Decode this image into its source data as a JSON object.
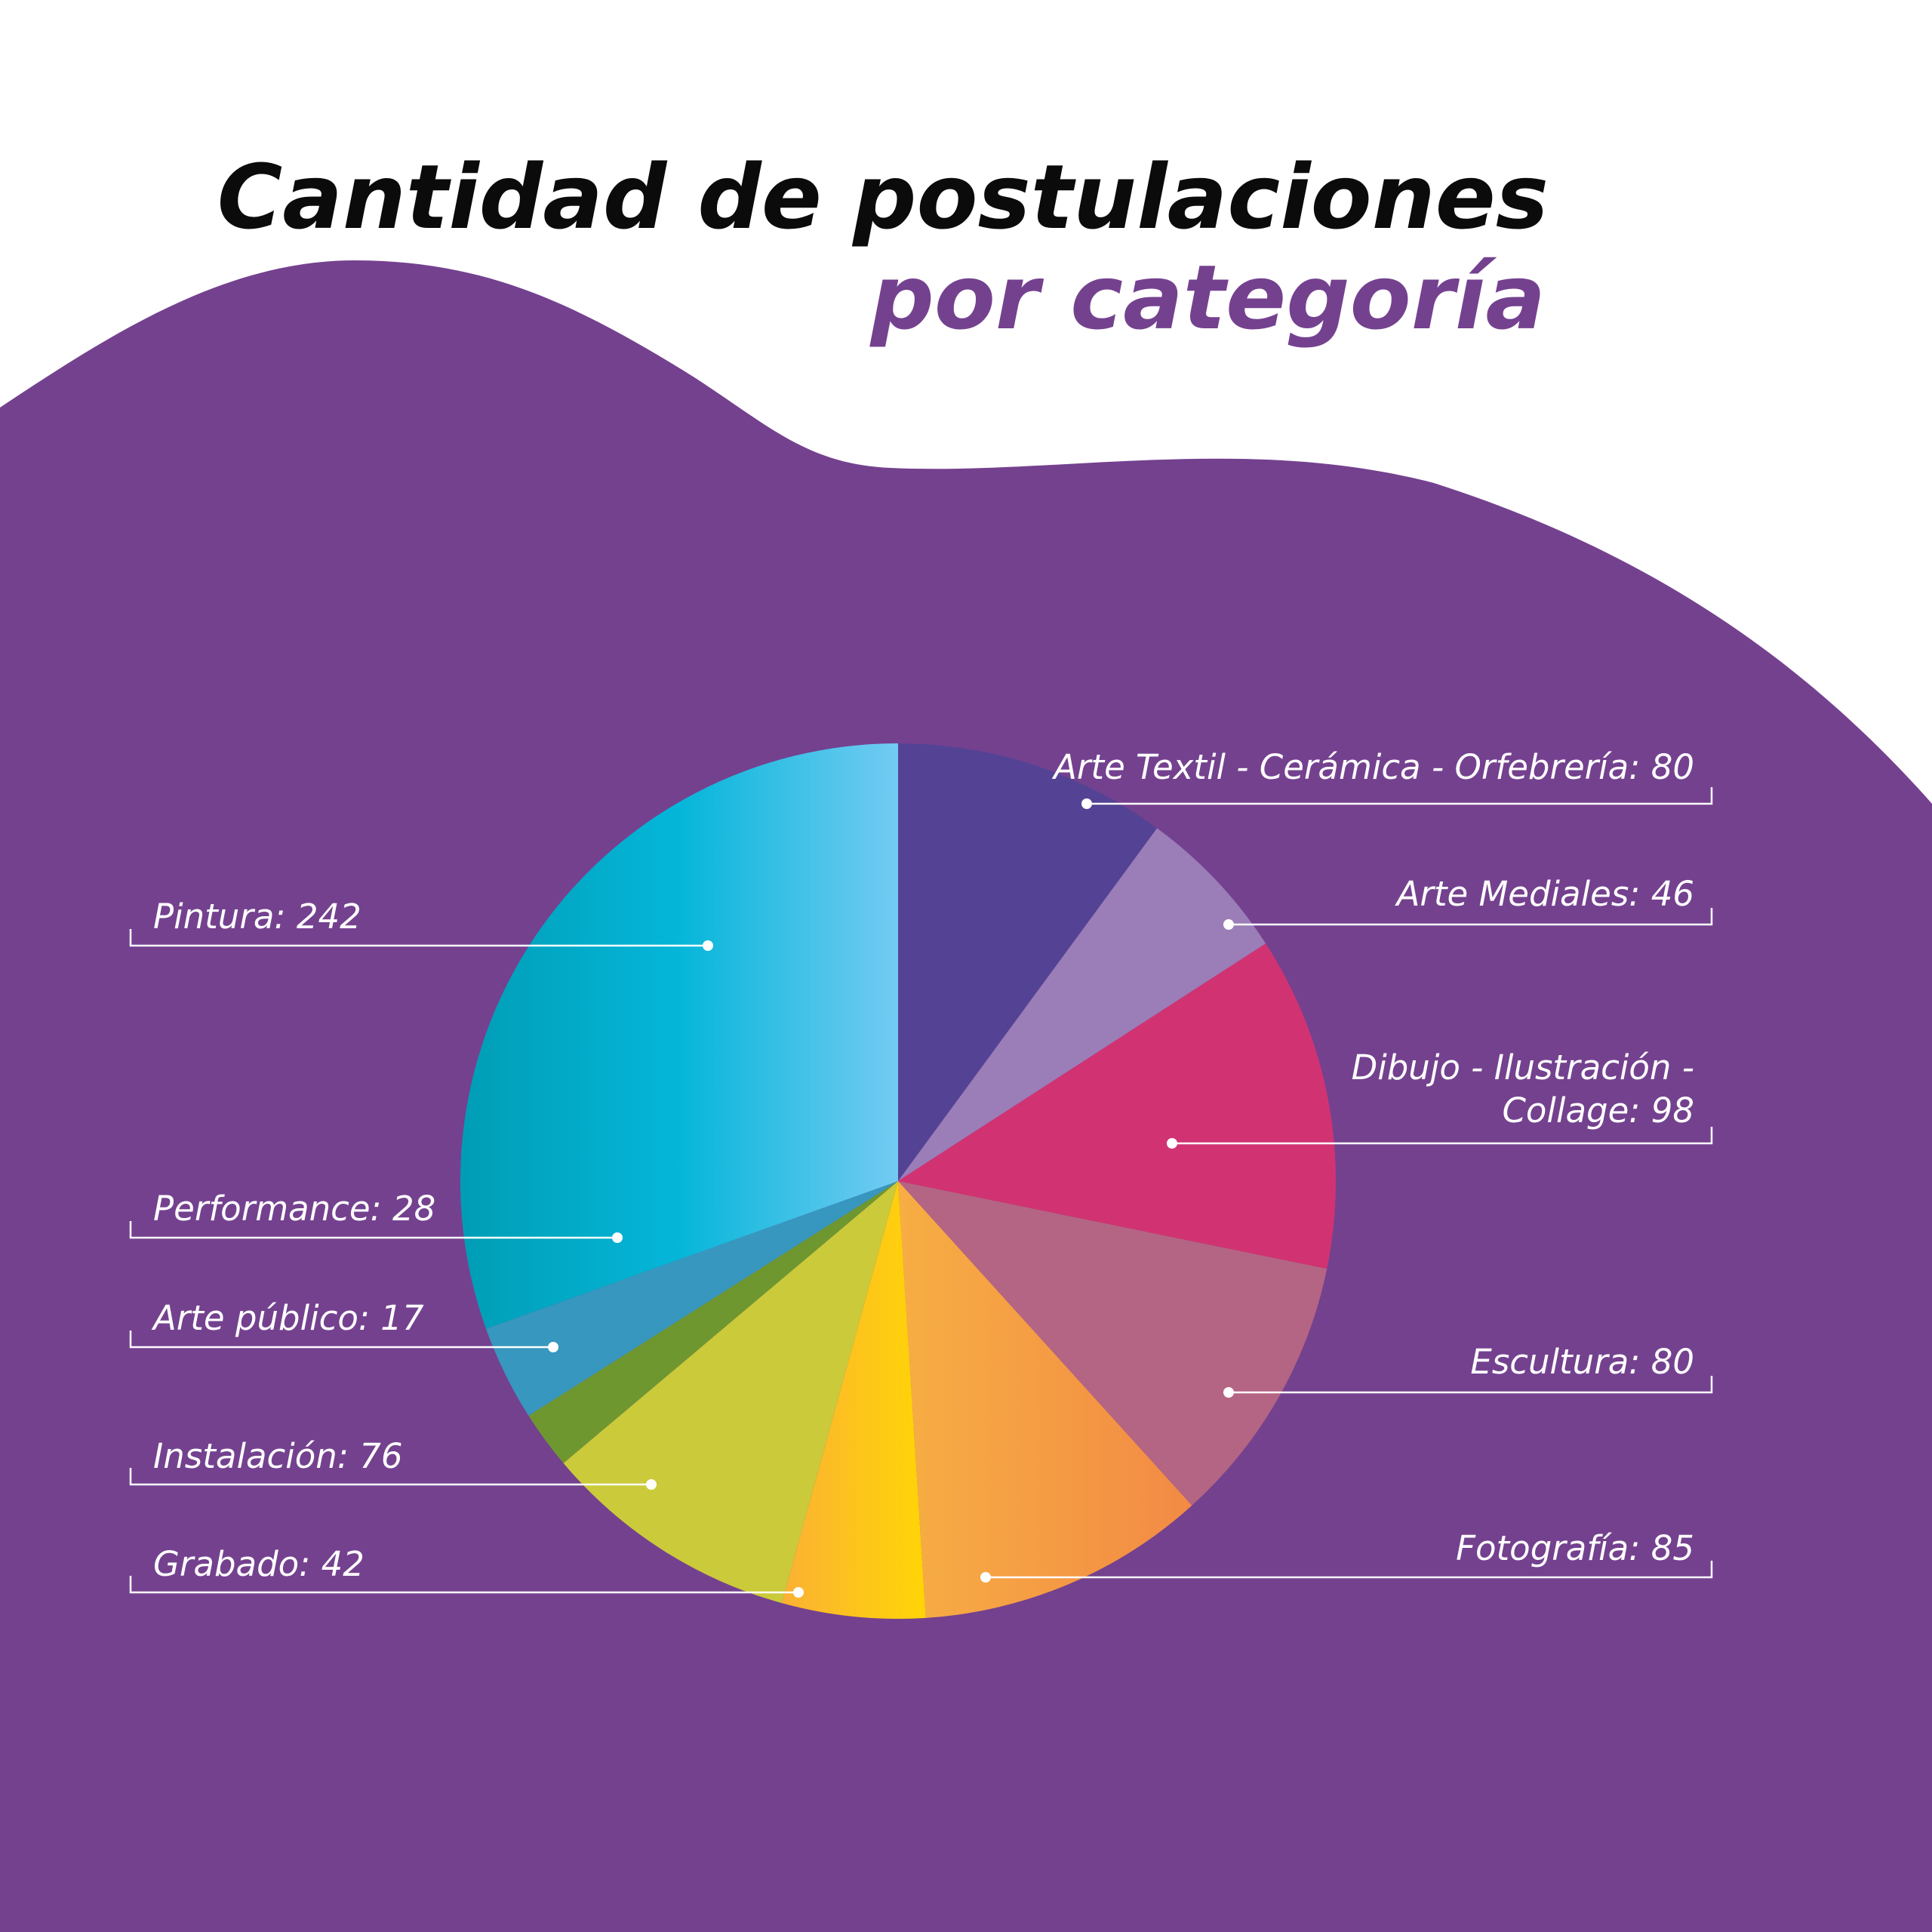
{
  "colors": {
    "background_wave": "#74418f",
    "title_primary": "#0b0b0b",
    "title_accent": "#74418f",
    "label_text": "#ffffff"
  },
  "chart_data": {
    "type": "pie",
    "title": "Cantidad de postulaciones",
    "subtitle": "por categoría",
    "start_angle_deg": 0,
    "direction": "clockwise",
    "slices": [
      {
        "label": "Arte Textil - Cerámica - Orfebrería",
        "display": "Arte Textil - Cerámica - Orfebrería: 80",
        "value": 80,
        "color": "#544394",
        "label_side": "right"
      },
      {
        "label": "Arte Mediales",
        "display": "Arte Mediales: 46",
        "value": 46,
        "color": "#9b7db8",
        "label_side": "right"
      },
      {
        "label": "Dibujo - Ilustración - Collage",
        "display_lines": [
          "Dibujo - Ilustración -",
          "Collage: 98"
        ],
        "value": 98,
        "color": "#d13372",
        "label_side": "right"
      },
      {
        "label": "Escultura",
        "display": "Escultura: 80",
        "value": 80,
        "color": "#b46583",
        "label_side": "right"
      },
      {
        "label": "Fotografía",
        "display": "Fotografía: 85",
        "value": 85,
        "color": "#f5a146",
        "color_end": "#f28b44",
        "label_side": "right"
      },
      {
        "label": "Grabado",
        "display": "Grabado: 42",
        "value": 42,
        "color": "#fbb134",
        "color_end": "#ffd506",
        "label_side": "left"
      },
      {
        "label": "Instalación",
        "display": "Instalación: 76",
        "value": 76,
        "color": "#cbca3a",
        "label_side": "left"
      },
      {
        "label": "Arte público",
        "display": "Arte público: 17",
        "value": 17,
        "color": "#6f972f",
        "label_side": "left"
      },
      {
        "label": "Performance",
        "display": "Performance: 28",
        "value": 28,
        "color": "#3797be",
        "label_side": "left"
      },
      {
        "label": "Pintura",
        "display": "Pintura: 242",
        "value": 242,
        "color": "#009db5",
        "color_mid": "#05b6d9",
        "color_end": "#73cbf3",
        "label_side": "left"
      }
    ]
  }
}
